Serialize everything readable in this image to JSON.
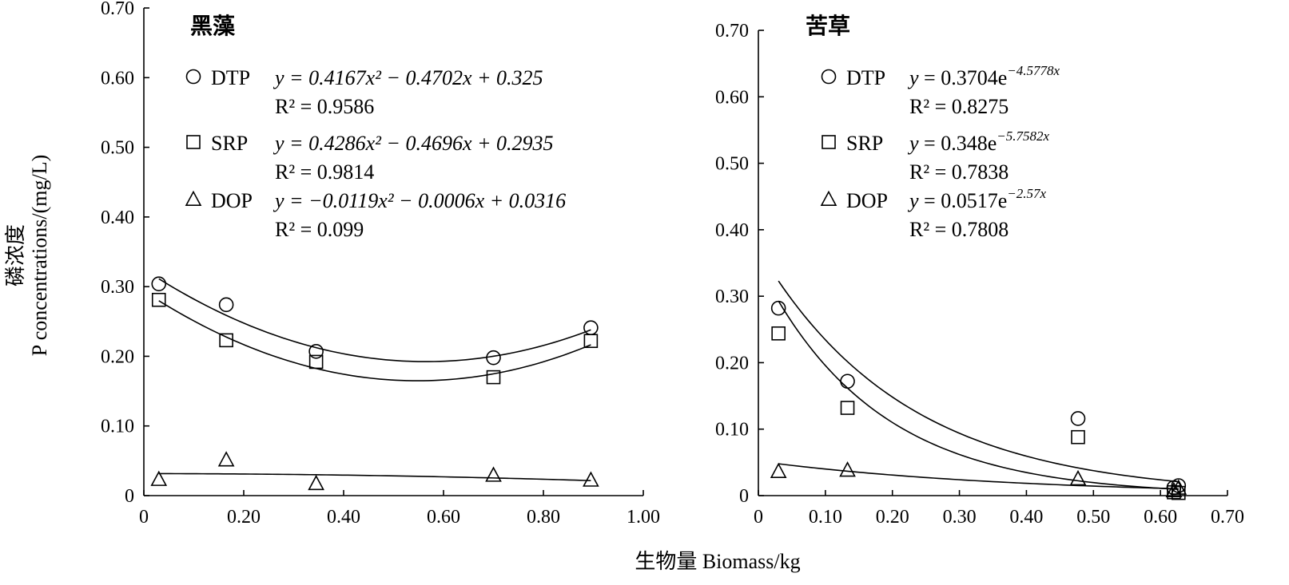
{
  "chart_data": [
    {
      "type": "scatter",
      "title": "黑藻",
      "xlim": [
        0,
        1.0
      ],
      "ylim": [
        0,
        0.7
      ],
      "xticks": [
        "0",
        "0.20",
        "0.40",
        "0.60",
        "0.80",
        "1.00"
      ],
      "yticks": [
        "0",
        "0.10",
        "0.20",
        "0.30",
        "0.40",
        "0.50",
        "0.60",
        "0.70"
      ],
      "series": [
        {
          "name": "DTP",
          "marker": "circle",
          "x": [
            0.03,
            0.165,
            0.345,
            0.7,
            0.895
          ],
          "y": [
            0.304,
            0.274,
            0.207,
            0.198,
            0.241
          ],
          "equation": "y = 0.4167x² − 0.4702x + 0.325",
          "r2": "R² = 0.9586",
          "fit": {
            "kind": "poly2",
            "a": 0.4167,
            "b": -0.4702,
            "c": 0.325
          }
        },
        {
          "name": "SRP",
          "marker": "square",
          "x": [
            0.03,
            0.165,
            0.345,
            0.7,
            0.895
          ],
          "y": [
            0.281,
            0.223,
            0.192,
            0.17,
            0.222
          ],
          "equation": "y = 0.4286x² − 0.4696x + 0.2935",
          "r2": "R² = 0.9814",
          "fit": {
            "kind": "poly2",
            "a": 0.4286,
            "b": -0.4696,
            "c": 0.2935
          }
        },
        {
          "name": "DOP",
          "marker": "triangle",
          "x": [
            0.03,
            0.165,
            0.345,
            0.7,
            0.895
          ],
          "y": [
            0.023,
            0.051,
            0.017,
            0.029,
            0.022
          ],
          "equation": "y = −0.0119x² − 0.0006x + 0.0316",
          "r2": "R² = 0.099",
          "fit": {
            "kind": "poly2",
            "a": -0.0119,
            "b": -0.0006,
            "c": 0.0316
          }
        }
      ]
    },
    {
      "type": "scatter",
      "title": "苦草",
      "xlim": [
        0,
        0.7
      ],
      "ylim": [
        0,
        0.7
      ],
      "xticks": [
        "0",
        "0.10",
        "0.20",
        "0.30",
        "0.40",
        "0.50",
        "0.60",
        "0.70"
      ],
      "yticks": [
        "0",
        "0.10",
        "0.20",
        "0.30",
        "0.40",
        "0.50",
        "0.60",
        "0.70"
      ],
      "series": [
        {
          "name": "DTP",
          "marker": "circle",
          "x": [
            0.03,
            0.133,
            0.477,
            0.62,
            0.627
          ],
          "y": [
            0.282,
            0.172,
            0.116,
            0.012,
            0.015
          ],
          "equation": "y = 0.3704e^(−4.5778x)",
          "r2": "R² = 0.8275",
          "eq_base": "y = 0.3704e",
          "eq_exp": "−4.5778x",
          "fit": {
            "kind": "exp",
            "a": 0.3704,
            "b": -4.5778
          }
        },
        {
          "name": "SRP",
          "marker": "square",
          "x": [
            0.03,
            0.133,
            0.477,
            0.62,
            0.627
          ],
          "y": [
            0.244,
            0.132,
            0.088,
            0.005,
            0.004
          ],
          "equation": "y = 0.348e^(−5.7582x)",
          "r2": "R² = 0.7838",
          "eq_base": "y = 0.348e",
          "eq_exp": "−5.7582x",
          "fit": {
            "kind": "exp",
            "a": 0.348,
            "b": -5.7582
          }
        },
        {
          "name": "DOP",
          "marker": "triangle",
          "x": [
            0.03,
            0.133,
            0.477,
            0.62,
            0.627
          ],
          "y": [
            0.036,
            0.038,
            0.025,
            0.007,
            0.011
          ],
          "equation": "y = 0.0517e^(−2.57x)",
          "r2": "R² = 0.7808",
          "eq_base": "y = 0.0517e",
          "eq_exp": "−2.57x",
          "fit": {
            "kind": "exp",
            "a": 0.0517,
            "b": -2.57
          }
        }
      ]
    }
  ],
  "labels": {
    "ylabel_cn": "磷浓度",
    "ylabel_en": "P concentrations/(mg/L)",
    "xlabel": "生物量 Biomass/kg"
  }
}
